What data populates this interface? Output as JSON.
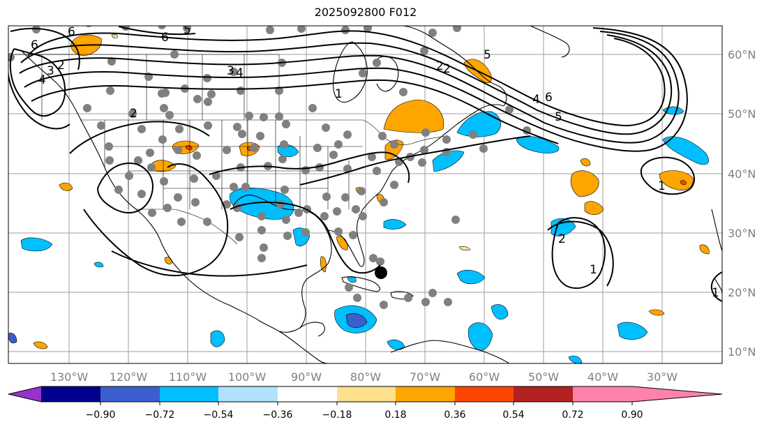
{
  "title": "2025092800 F012",
  "lon_labels": [
    "130°W",
    "120°W",
    "110°W",
    "100°W",
    "90°W",
    "80°W",
    "70°W",
    "60°W",
    "50°W",
    "40°W",
    "30°W"
  ],
  "lat_labels": [
    "60°N",
    "50°N",
    "40°N",
    "30°N",
    "20°N",
    "10°N"
  ],
  "colorbar": {
    "colors": [
      "#9932cc",
      "#00008b",
      "#3a5fcd",
      "#00bfff",
      "#b0e2ff",
      "#ffffff",
      "#fee08b",
      "#ffa500",
      "#ff4500",
      "#b22222",
      "#ff82ab"
    ],
    "ticks": [
      "−0.90",
      "−0.72",
      "−0.54",
      "−0.36",
      "−0.18",
      "0.18",
      "0.36",
      "0.54",
      "0.72",
      "0.90"
    ]
  },
  "contour_labels": [
    "6",
    "6",
    "5",
    "2",
    "3",
    "4",
    "3",
    "2",
    "1",
    "2",
    "2",
    "4",
    "6",
    "5",
    "5",
    "4",
    "6",
    "1",
    "2",
    "1",
    "1"
  ],
  "fill_colors": {
    "orange": "#ffa500",
    "blue": "#00bfff",
    "light_orange": "#fee08b",
    "red": "#ff4500",
    "dark_blue": "#3a5fcd"
  },
  "station_color": "#808080"
}
